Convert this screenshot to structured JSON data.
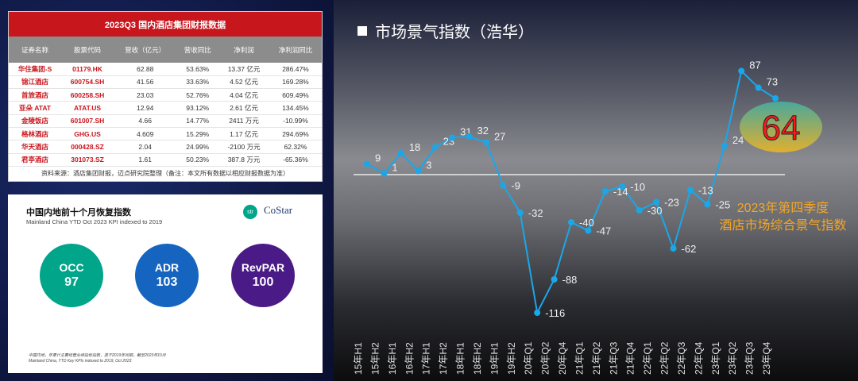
{
  "table": {
    "title": "2023Q3 国内酒店集团财报数据",
    "headers": [
      "证券名称",
      "股票代码",
      "营收（亿元）",
      "营收同比",
      "净利润",
      "净利润同比"
    ],
    "rows": [
      [
        "华住集团-S",
        "01179.HK",
        "62.88",
        "53.63%",
        "13.37 亿元",
        "286.47%"
      ],
      [
        "锦江酒店",
        "600754.SH",
        "41.56",
        "33.63%",
        "4.52 亿元",
        "169.28%"
      ],
      [
        "首旅酒店",
        "600258.SH",
        "23.03",
        "52.76%",
        "4.04 亿元",
        "609.49%"
      ],
      [
        "亚朵 ATAT",
        "ATAT.US",
        "12.94",
        "93.12%",
        "2.61 亿元",
        "134.45%"
      ],
      [
        "金陵饭店",
        "601007.SH",
        "4.66",
        "14.77%",
        "2411 万元",
        "-10.99%"
      ],
      [
        "格林酒店",
        "GHG.US",
        "4.609",
        "15.29%",
        "1.17 亿元",
        "294.69%"
      ],
      [
        "华天酒店",
        "000428.SZ",
        "2.04",
        "24.99%",
        "-2100 万元",
        "62.32%"
      ],
      [
        "君亭酒店",
        "301073.SZ",
        "1.61",
        "50.23%",
        "387.8 万元",
        "-65.36%"
      ]
    ],
    "footer": "资料来源：酒店集团财报，迈点研究院整理（备注：本文所有数据以相应财报数据为准）"
  },
  "kpi": {
    "title": "中国内地前十个月恢复指数",
    "subtitle": "Mainland China YTD Oct 2023 KPI indexed to 2019",
    "logo_str": "str",
    "logo_costar": "CoStar",
    "items": [
      {
        "label": "OCC",
        "value": "97",
        "color": "#00a58a"
      },
      {
        "label": "ADR",
        "value": "103",
        "color": "#1565c0"
      },
      {
        "label": "RevPAR",
        "value": "100",
        "color": "#4a1a86"
      }
    ],
    "footnote_cn": "中国内地，年累计主要经营业绩指标指数，基于2019年同期，截至2023年10月",
    "footnote_en": "Mainland China, YTD Key KPIs indexed to 2019, Oct 2023"
  },
  "chart_data": {
    "type": "line",
    "title": "市场景气指数（浩华）",
    "categories": [
      "15年H1",
      "15年H2",
      "16年H1",
      "16年H2",
      "17年H1",
      "17年H2",
      "18年H1",
      "18年H2",
      "19年H1",
      "19年H2",
      "20年Q1",
      "20年Q2",
      "20年Q4",
      "21年Q1",
      "21年Q2",
      "21年Q3",
      "21年Q4",
      "22年Q1",
      "22年Q2",
      "22年Q3",
      "22年Q4",
      "23年Q1",
      "23年Q2",
      "23年Q3",
      "23年Q4"
    ],
    "values": [
      9,
      1,
      18,
      3,
      23,
      31,
      32,
      27,
      -9,
      -32,
      -116,
      -88,
      -40,
      -47,
      -14,
      -10,
      -30,
      -23,
      -62,
      -13,
      -25,
      24,
      87,
      73,
      64
    ],
    "labels": [
      "9",
      "1",
      "18",
      "3",
      "23",
      "31",
      "32",
      "27",
      "-9",
      "-32",
      "-116",
      "-88",
      "-40",
      "-47",
      "-14",
      "-10",
      "-30",
      "-23",
      "-62",
      "-13",
      "-25",
      "24",
      "87",
      "73",
      ""
    ],
    "highlight_value": "64",
    "line_color": "#1aa7e8",
    "baseline": 0,
    "note_line1": "2023年第四季度",
    "note_line2": "酒店市场综合景气指数"
  }
}
